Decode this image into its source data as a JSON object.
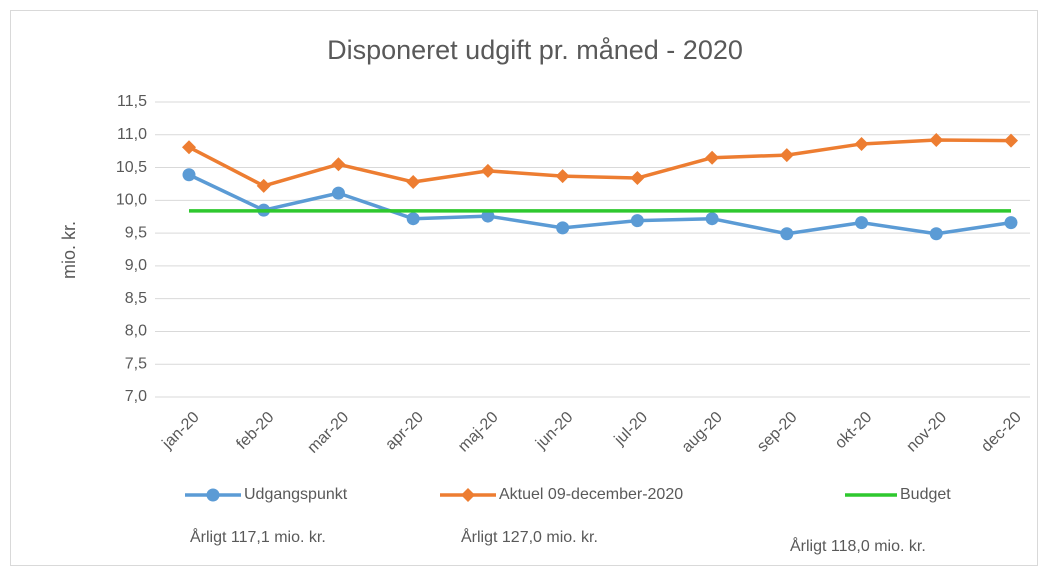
{
  "chart_data": {
    "type": "line",
    "title": "Disponeret udgift pr. måned - 2020",
    "y_label": "mio. kr.",
    "categories": [
      "jan-20",
      "feb-20",
      "mar-20",
      "apr-20",
      "maj-20",
      "jun-20",
      "jul-20",
      "aug-20",
      "sep-20",
      "okt-20",
      "nov-20",
      "dec-20"
    ],
    "series": [
      {
        "name": "Udgangspunkt",
        "color": "#5b9bd5",
        "marker": "circle",
        "values": [
          10.39,
          9.85,
          10.11,
          9.72,
          9.76,
          9.58,
          9.69,
          9.72,
          9.49,
          9.66,
          9.49,
          9.66
        ]
      },
      {
        "name": "Aktuel 09-december-2020",
        "color": "#ed7d31",
        "marker": "diamond",
        "values": [
          10.81,
          10.22,
          10.55,
          10.28,
          10.45,
          10.37,
          10.34,
          10.65,
          10.69,
          10.86,
          10.92,
          10.91
        ]
      },
      {
        "name": "Budget",
        "color": "#2ec82e",
        "marker": "none",
        "values": [
          9.84,
          9.84,
          9.84,
          9.84,
          9.84,
          9.84,
          9.84,
          9.84,
          9.84,
          9.84,
          9.84,
          9.84
        ]
      }
    ],
    "ylim": [
      7,
      11.5
    ],
    "yticks": [
      {
        "value": 7,
        "label": "7,0"
      },
      {
        "value": 7.5,
        "label": "7,5"
      },
      {
        "value": 8,
        "label": "8,0"
      },
      {
        "value": 8.5,
        "label": "8,5"
      },
      {
        "value": 9,
        "label": "9,0"
      },
      {
        "value": 9.5,
        "label": "9,5"
      },
      {
        "value": 10,
        "label": "10,0"
      },
      {
        "value": 10.5,
        "label": "10,5"
      },
      {
        "value": 11,
        "label": "11,0"
      },
      {
        "value": 11.5,
        "label": "11,5"
      }
    ],
    "grid": true,
    "legend": "bottom",
    "annotations": [
      "Årligt 117,1 mio. kr.",
      "Årligt 127,0 mio. kr.",
      "Årligt 118,0 mio. kr."
    ]
  }
}
